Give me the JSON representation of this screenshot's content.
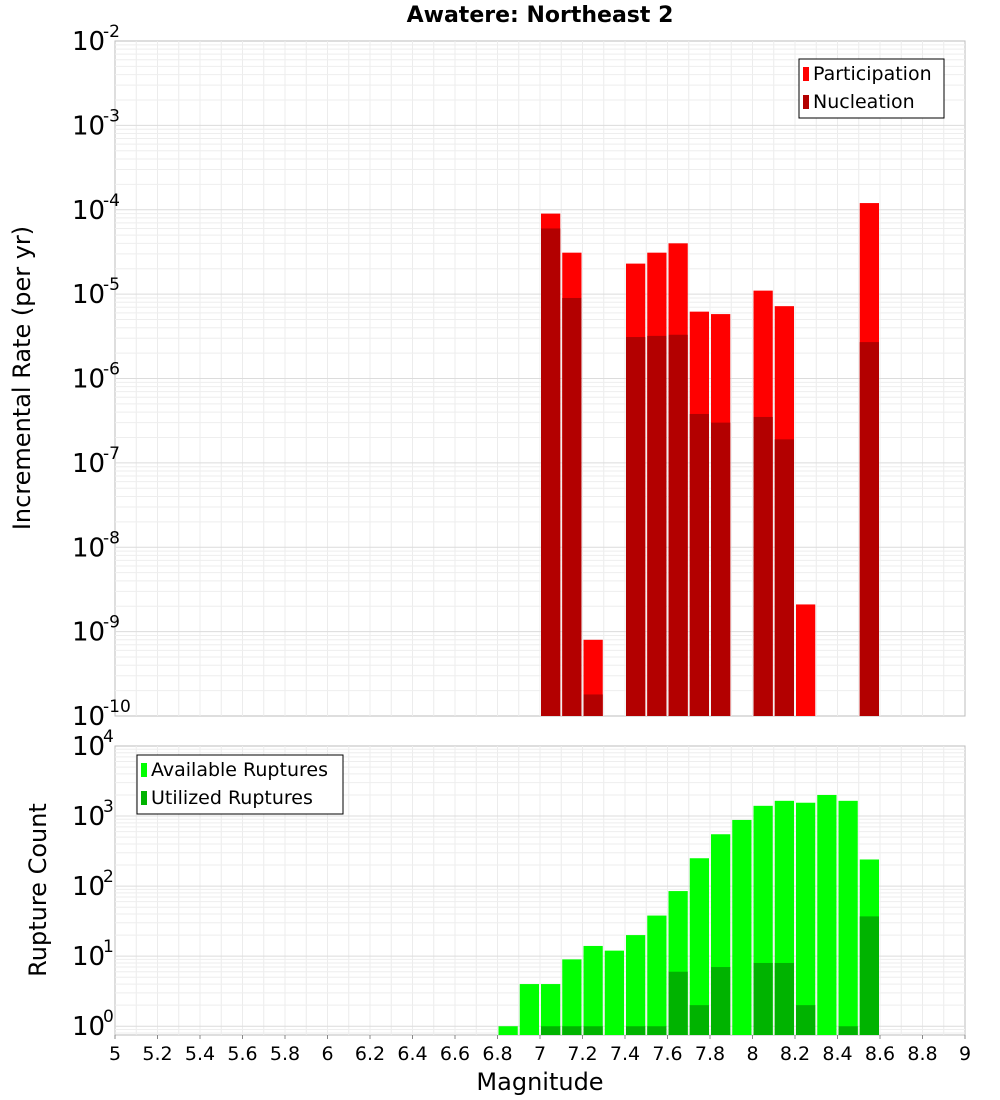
{
  "chart_data": [
    {
      "type": "bar",
      "title": "Awatere: Northeast 2",
      "xlabel": "",
      "ylabel": "Incremental Rate (per yr)",
      "yscale": "log",
      "ylim": [
        1e-10,
        0.01
      ],
      "xlim": [
        5,
        9
      ],
      "grid": true,
      "legend_position": "top-right",
      "ytick_exponents": [
        "-10",
        "-9",
        "-8",
        "-7",
        "-6",
        "-5",
        "-4",
        "-3",
        "-2"
      ],
      "colors": {
        "Participation": "#ff0000",
        "Nucleation": "#b30000"
      },
      "x": [
        7.05,
        7.15,
        7.25,
        7.45,
        7.55,
        7.65,
        7.75,
        7.85,
        8.05,
        8.15,
        8.25,
        8.55
      ],
      "series": [
        {
          "name": "Participation",
          "values": [
            9e-05,
            3.1e-05,
            8e-10,
            2.3e-05,
            3.1e-05,
            4e-05,
            6.2e-06,
            5.8e-06,
            1.1e-05,
            7.2e-06,
            2.1e-09,
            0.00012
          ]
        },
        {
          "name": "Nucleation",
          "values": [
            6e-05,
            9e-06,
            1.8e-10,
            3.1e-06,
            3.2e-06,
            3.3e-06,
            3.8e-07,
            3e-07,
            3.5e-07,
            1.9e-07,
            null,
            2.7e-06
          ]
        }
      ]
    },
    {
      "type": "bar",
      "title": "",
      "xlabel": "Magnitude",
      "ylabel": "Rupture Count",
      "yscale": "log",
      "ylim": [
        0.75,
        10000
      ],
      "xlim": [
        5,
        9
      ],
      "grid": true,
      "legend_position": "top-left",
      "ytick_exponents": [
        "0",
        "1",
        "2",
        "3",
        "4"
      ],
      "xticks": [
        "5",
        "5.2",
        "5.4",
        "5.6",
        "5.8",
        "6",
        "6.2",
        "6.4",
        "6.6",
        "6.8",
        "7",
        "7.2",
        "7.4",
        "7.6",
        "7.8",
        "8",
        "8.2",
        "8.4",
        "8.6",
        "8.8",
        "9"
      ],
      "colors": {
        "Available Ruptures": "#00ff00",
        "Utilized Ruptures": "#00b300"
      },
      "x": [
        6.85,
        6.95,
        7.05,
        7.15,
        7.25,
        7.35,
        7.45,
        7.55,
        7.65,
        7.75,
        7.85,
        7.95,
        8.05,
        8.15,
        8.25,
        8.35,
        8.45,
        8.55
      ],
      "series": [
        {
          "name": "Available Ruptures",
          "values": [
            1,
            4,
            4,
            9,
            14,
            12,
            20,
            38,
            85,
            250,
            550,
            880,
            1400,
            1650,
            1550,
            2000,
            1650,
            240
          ]
        },
        {
          "name": "Utilized Ruptures",
          "values": [
            null,
            null,
            1,
            1,
            1,
            null,
            1,
            1,
            6,
            2,
            7,
            null,
            8,
            8,
            2,
            null,
            1,
            37
          ]
        }
      ]
    }
  ]
}
